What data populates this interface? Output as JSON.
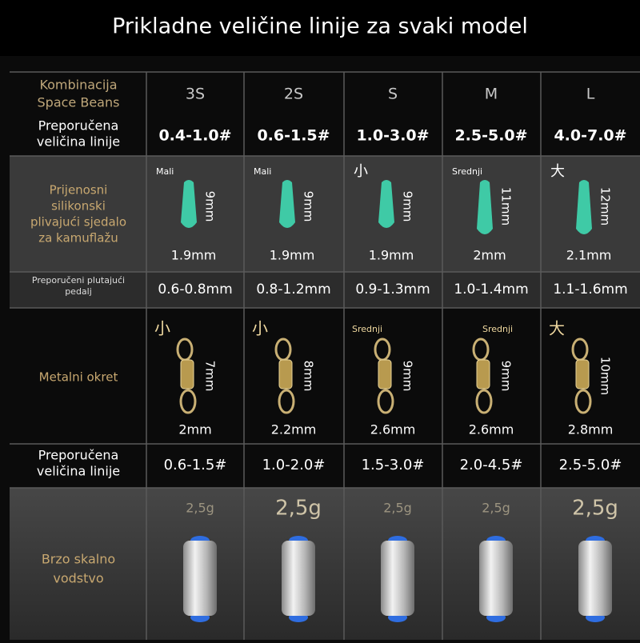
{
  "title": "Prikladne veličine linije za svaki model",
  "space_beans": {
    "label": [
      "Kombinacija",
      "Space Beans"
    ],
    "values": [
      "3S",
      "2S",
      "S",
      "M",
      "L"
    ]
  },
  "line_size_1": {
    "label": [
      "Preporučena",
      "veličina linije"
    ],
    "values": [
      "0.4-1.0#",
      "0.6-1.5#",
      "1.0-3.0#",
      "2.5-5.0#",
      "4.0-7.0#"
    ]
  },
  "silicone": {
    "label": [
      "Prijenosni",
      "silikonski",
      "plivajući sjedalo",
      "za kamuflažu"
    ],
    "sizes": [
      "Mali",
      "Mali",
      "小",
      "Srednji",
      "大"
    ],
    "heights": [
      "9mm",
      "9mm",
      "9mm",
      "11mm",
      "12mm"
    ],
    "widths": [
      "1.9mm",
      "1.9mm",
      "1.9mm",
      "2mm",
      "2.1mm"
    ]
  },
  "float": {
    "label": [
      "Preporučeni plutajući",
      "pedalj"
    ],
    "values": [
      "0.6-0.8mm",
      "0.8-1.2mm",
      "0.9-1.3mm",
      "1.0-1.4mm",
      "1.1-1.6mm"
    ]
  },
  "swivel": {
    "label": [
      "Metalni okret"
    ],
    "sizes": [
      "小",
      "小",
      "Srednji",
      "Srednji",
      "大"
    ],
    "heights": [
      "7mm",
      "8mm",
      "9mm",
      "9mm",
      "10mm"
    ],
    "widths": [
      "2mm",
      "2.2mm",
      "2.6mm",
      "2.6mm",
      "2.8mm"
    ]
  },
  "line_size_2": {
    "label": [
      "Preporučena",
      "veličina linije"
    ],
    "values": [
      "0.6-1.5#",
      "1.0-2.0#",
      "1.5-3.0#",
      "2.0-4.5#",
      "2.5-5.0#"
    ]
  },
  "sinker": {
    "label": [
      "Brzo skalno",
      "vodstvo"
    ],
    "weights": [
      "2,5g",
      "2,5g",
      "2,5g",
      "2,5g",
      "2,5g"
    ]
  }
}
